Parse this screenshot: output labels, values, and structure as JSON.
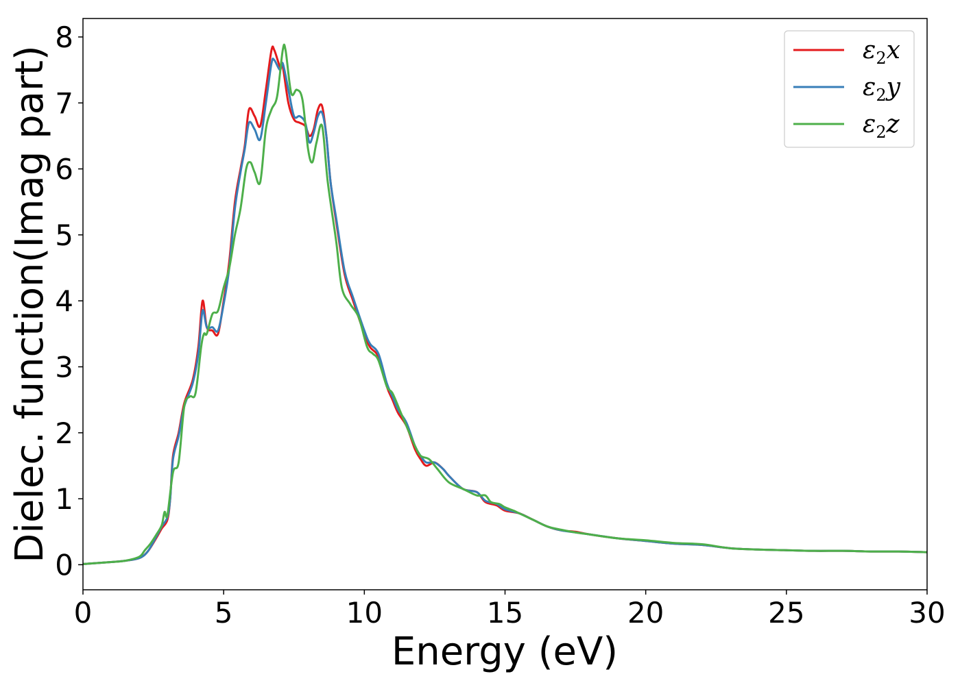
{
  "chart_data": {
    "type": "line",
    "title": "",
    "xlabel": "Energy (eV)",
    "ylabel": "Dielec. function(Imag part)",
    "xlim": [
      0,
      30
    ],
    "ylim": [
      -0.38,
      8.28
    ],
    "xticks": [
      0,
      5,
      10,
      15,
      20,
      25,
      30
    ],
    "yticks": [
      0,
      1,
      2,
      3,
      4,
      5,
      6,
      7,
      8
    ],
    "grid": false,
    "legend_position": "top-right",
    "series": [
      {
        "name": "ε2x",
        "label_base": "ε",
        "label_sub": "2",
        "label_suffix": "x",
        "color": "#e41a1c",
        "x": [
          0,
          1,
          1.5,
          2,
          2.3,
          2.6,
          2.8,
          3.0,
          3.1,
          3.2,
          3.4,
          3.6,
          3.9,
          4.1,
          4.25,
          4.4,
          4.6,
          4.8,
          5.0,
          5.2,
          5.4,
          5.6,
          5.75,
          5.9,
          6.1,
          6.3,
          6.5,
          6.7,
          6.8,
          7.0,
          7.1,
          7.3,
          7.5,
          7.7,
          7.9,
          8.05,
          8.2,
          8.35,
          8.5,
          8.65,
          8.8,
          9.0,
          9.3,
          9.6,
          10.0,
          10.2,
          10.5,
          10.8,
          11.0,
          11.2,
          11.5,
          11.8,
          12.0,
          12.2,
          12.5,
          12.8,
          13.0,
          13.5,
          14.0,
          14.3,
          14.7,
          15.0,
          15.5,
          16.0,
          16.5,
          17.0,
          17.5,
          18.0,
          19.0,
          20.0,
          21.0,
          22.0,
          23.0,
          24.0,
          25.0,
          26.0,
          27.0,
          28.0,
          29.0,
          30.0
        ],
        "values": [
          0.01,
          0.04,
          0.06,
          0.1,
          0.2,
          0.4,
          0.55,
          0.68,
          1.0,
          1.65,
          2.0,
          2.45,
          2.8,
          3.3,
          4.0,
          3.6,
          3.55,
          3.5,
          4.0,
          4.6,
          5.5,
          6.0,
          6.35,
          6.9,
          6.8,
          6.65,
          7.2,
          7.8,
          7.8,
          7.55,
          7.55,
          7.0,
          6.75,
          6.7,
          6.65,
          6.5,
          6.6,
          6.9,
          6.95,
          6.5,
          5.8,
          5.2,
          4.4,
          4.0,
          3.5,
          3.3,
          3.15,
          2.7,
          2.5,
          2.3,
          2.1,
          1.75,
          1.6,
          1.5,
          1.55,
          1.45,
          1.35,
          1.15,
          1.1,
          0.95,
          0.9,
          0.82,
          0.78,
          0.68,
          0.58,
          0.52,
          0.5,
          0.46,
          0.4,
          0.36,
          0.32,
          0.3,
          0.25,
          0.23,
          0.22,
          0.21,
          0.21,
          0.2,
          0.2,
          0.19
        ]
      },
      {
        "name": "ε2y",
        "label_base": "ε",
        "label_sub": "2",
        "label_suffix": "y",
        "color": "#377eb8",
        "x": [
          0,
          1,
          1.5,
          2,
          2.3,
          2.6,
          2.8,
          3.0,
          3.1,
          3.2,
          3.4,
          3.6,
          3.9,
          4.1,
          4.25,
          4.4,
          4.6,
          4.8,
          5.0,
          5.2,
          5.4,
          5.6,
          5.75,
          5.9,
          6.1,
          6.3,
          6.5,
          6.7,
          6.8,
          7.0,
          7.1,
          7.3,
          7.5,
          7.7,
          7.9,
          8.05,
          8.2,
          8.35,
          8.5,
          8.65,
          8.8,
          9.0,
          9.3,
          9.6,
          10.0,
          10.2,
          10.5,
          10.8,
          11.0,
          11.2,
          11.5,
          11.8,
          12.0,
          12.2,
          12.5,
          12.8,
          13.0,
          13.5,
          14.0,
          14.3,
          14.7,
          15.0,
          15.5,
          16.0,
          16.5,
          17.0,
          17.5,
          18.0,
          19.0,
          20.0,
          21.0,
          22.0,
          23.0,
          24.0,
          25.0,
          26.0,
          27.0,
          28.0,
          29.0,
          30.0
        ],
        "values": [
          0.01,
          0.04,
          0.06,
          0.1,
          0.2,
          0.42,
          0.58,
          0.72,
          1.0,
          1.6,
          1.95,
          2.4,
          2.75,
          3.2,
          3.85,
          3.6,
          3.6,
          3.55,
          3.95,
          4.5,
          5.4,
          5.95,
          6.3,
          6.7,
          6.6,
          6.45,
          7.0,
          7.6,
          7.65,
          7.5,
          7.6,
          7.2,
          6.8,
          6.8,
          6.7,
          6.4,
          6.55,
          6.8,
          6.85,
          6.5,
          5.8,
          5.25,
          4.45,
          4.05,
          3.55,
          3.35,
          3.2,
          2.75,
          2.55,
          2.35,
          2.15,
          1.8,
          1.65,
          1.55,
          1.55,
          1.45,
          1.35,
          1.15,
          1.1,
          0.97,
          0.92,
          0.84,
          0.78,
          0.68,
          0.58,
          0.52,
          0.49,
          0.46,
          0.4,
          0.36,
          0.32,
          0.3,
          0.25,
          0.23,
          0.22,
          0.21,
          0.21,
          0.2,
          0.2,
          0.19
        ]
      },
      {
        "name": "ε2z",
        "label_base": "ε",
        "label_sub": "2",
        "label_suffix": "z",
        "color": "#4daf4a",
        "x": [
          0,
          1,
          1.5,
          2,
          2.2,
          2.4,
          2.6,
          2.8,
          2.9,
          3.0,
          3.2,
          3.4,
          3.6,
          3.8,
          4.0,
          4.2,
          4.3,
          4.4,
          4.6,
          4.8,
          5.0,
          5.2,
          5.4,
          5.6,
          5.8,
          5.95,
          6.1,
          6.3,
          6.5,
          6.7,
          6.9,
          7.1,
          7.2,
          7.4,
          7.6,
          7.8,
          8.0,
          8.15,
          8.3,
          8.5,
          8.7,
          9.0,
          9.2,
          9.5,
          9.8,
          10.1,
          10.3,
          10.5,
          10.8,
          11.0,
          11.3,
          11.5,
          11.8,
          12.0,
          12.3,
          12.6,
          13.0,
          13.5,
          14.0,
          14.3,
          14.5,
          14.8,
          15.0,
          15.3,
          15.5,
          16.0,
          16.5,
          17.0,
          17.5,
          18.0,
          19.0,
          20.0,
          21.0,
          22.0,
          23.0,
          24.0,
          25.0,
          26.0,
          27.0,
          28.0,
          29.0,
          30.0
        ],
        "values": [
          0.01,
          0.04,
          0.06,
          0.12,
          0.22,
          0.32,
          0.45,
          0.6,
          0.8,
          0.75,
          1.4,
          1.55,
          2.4,
          2.55,
          2.6,
          3.3,
          3.5,
          3.5,
          3.8,
          3.85,
          4.2,
          4.5,
          5.0,
          5.4,
          6.0,
          6.1,
          5.95,
          5.8,
          6.6,
          6.9,
          7.1,
          7.8,
          7.8,
          7.15,
          7.2,
          7.05,
          6.3,
          6.1,
          6.4,
          6.65,
          5.8,
          4.9,
          4.2,
          3.95,
          3.75,
          3.3,
          3.2,
          3.1,
          2.7,
          2.6,
          2.3,
          2.1,
          1.8,
          1.65,
          1.6,
          1.45,
          1.25,
          1.15,
          1.05,
          1.05,
          0.95,
          0.92,
          0.87,
          0.82,
          0.78,
          0.68,
          0.58,
          0.53,
          0.49,
          0.46,
          0.4,
          0.37,
          0.33,
          0.31,
          0.25,
          0.23,
          0.22,
          0.21,
          0.21,
          0.2,
          0.2,
          0.19
        ]
      }
    ]
  }
}
